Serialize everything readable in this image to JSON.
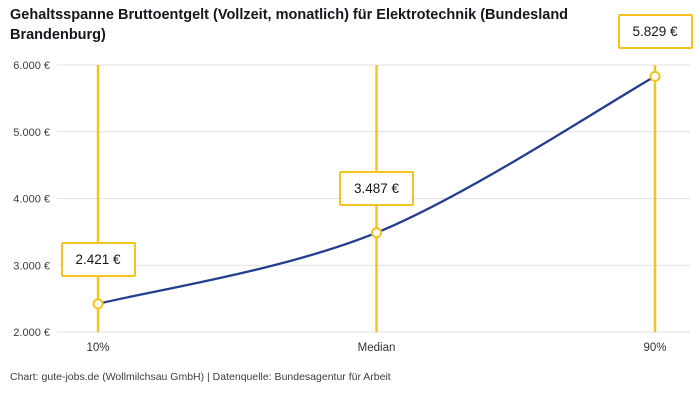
{
  "chart_data": {
    "type": "line",
    "title": "Gehaltsspanne Bruttoentgelt (Vollzeit, monatlich) für Elektrotechnik (Bundesland Brandenburg)",
    "categories": [
      "10%",
      "Median",
      "90%"
    ],
    "values": [
      2421,
      3487,
      5829
    ],
    "value_labels": [
      "2.421 €",
      "3.487 €",
      "5.829 €"
    ],
    "y_ticks": [
      {
        "value": 2000,
        "label": "2.000 €"
      },
      {
        "value": 3000,
        "label": "3.000 €"
      },
      {
        "value": 4000,
        "label": "4.000 €"
      },
      {
        "value": 5000,
        "label": "5.000 €"
      },
      {
        "value": 6000,
        "label": "6.000 €"
      }
    ],
    "ylim": [
      2000,
      6000
    ],
    "grid": true,
    "legend": "none",
    "colors": {
      "line": "#243e8f",
      "accent": "#F3C41F",
      "grid": "#e1e1e1",
      "axis_text": "#3d3d3d",
      "title_text": "#16161d"
    }
  },
  "footer": "Chart: gute-jobs.de (Wollmilchsau GmbH) | Datenquelle: Bundesagentur für Arbeit"
}
